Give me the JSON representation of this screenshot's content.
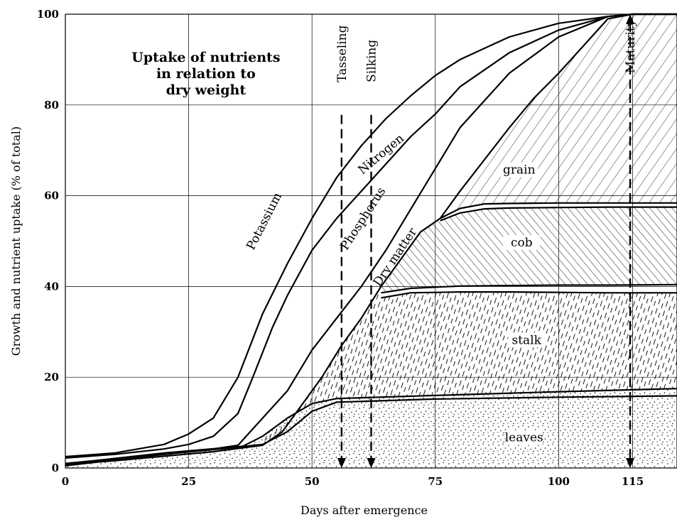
{
  "chart_data": {
    "type": "line",
    "title": [
      "Uptake of nutrients",
      "in relation to",
      "dry weight"
    ],
    "xlabel": "Days after emergence",
    "ylabel": "Growth and nutrient uptake (% of total)",
    "xlim": [
      0,
      124
    ],
    "ylim": [
      0,
      100
    ],
    "xticks": [
      0,
      25,
      50,
      75,
      100,
      115
    ],
    "yticks": [
      0,
      20,
      40,
      60,
      80,
      100
    ],
    "grid": true,
    "series": [
      {
        "name": "Potassium",
        "points": [
          [
            0,
            2.5
          ],
          [
            10,
            3.3
          ],
          [
            20,
            5.2
          ],
          [
            25,
            7.5
          ],
          [
            30,
            11
          ],
          [
            35,
            20
          ],
          [
            40,
            34
          ],
          [
            45,
            45
          ],
          [
            50,
            55
          ],
          [
            55,
            64
          ],
          [
            60,
            71
          ],
          [
            65,
            77
          ],
          [
            70,
            82
          ],
          [
            75,
            86.5
          ],
          [
            80,
            90
          ],
          [
            90,
            95
          ],
          [
            100,
            98
          ],
          [
            110,
            99.5
          ],
          [
            115,
            100
          ],
          [
            124,
            100
          ]
        ]
      },
      {
        "name": "Nitrogen",
        "points": [
          [
            0,
            2.2
          ],
          [
            10,
            3
          ],
          [
            20,
            4.2
          ],
          [
            25,
            5.2
          ],
          [
            30,
            7
          ],
          [
            35,
            12
          ],
          [
            38,
            20
          ],
          [
            42,
            31
          ],
          [
            45,
            38
          ],
          [
            50,
            48
          ],
          [
            55,
            55
          ],
          [
            60,
            61
          ],
          [
            65,
            67
          ],
          [
            70,
            73
          ],
          [
            75,
            78
          ],
          [
            80,
            84
          ],
          [
            90,
            91.5
          ],
          [
            100,
            96.5
          ],
          [
            110,
            99.5
          ],
          [
            115,
            100
          ],
          [
            124,
            100
          ]
        ]
      },
      {
        "name": "Phosphorus",
        "points": [
          [
            0,
            1
          ],
          [
            10,
            2
          ],
          [
            20,
            3
          ],
          [
            30,
            4.2
          ],
          [
            35,
            5
          ],
          [
            40,
            11
          ],
          [
            45,
            17
          ],
          [
            50,
            26
          ],
          [
            55,
            33
          ],
          [
            60,
            40
          ],
          [
            65,
            48
          ],
          [
            70,
            57
          ],
          [
            75,
            66
          ],
          [
            80,
            75
          ],
          [
            90,
            87
          ],
          [
            100,
            95
          ],
          [
            110,
            99.5
          ],
          [
            115,
            100
          ],
          [
            124,
            100
          ]
        ]
      },
      {
        "name": "Dry matter",
        "points": [
          [
            0,
            0.8
          ],
          [
            10,
            1.6
          ],
          [
            20,
            2.6
          ],
          [
            30,
            3.6
          ],
          [
            37,
            4.6
          ],
          [
            40,
            5
          ],
          [
            44,
            8
          ],
          [
            48,
            14
          ],
          [
            52,
            20
          ],
          [
            56,
            27
          ],
          [
            60,
            33
          ],
          [
            64,
            40
          ],
          [
            68,
            46
          ],
          [
            72,
            52
          ],
          [
            76,
            55
          ],
          [
            80,
            61
          ],
          [
            85,
            68
          ],
          [
            90,
            75
          ],
          [
            95,
            81.5
          ],
          [
            100,
            87
          ],
          [
            105,
            93
          ],
          [
            110,
            99
          ],
          [
            115,
            100
          ],
          [
            124,
            100
          ]
        ]
      },
      {
        "name": "leaves_lower",
        "points": [
          [
            0,
            0.5
          ],
          [
            20,
            3
          ],
          [
            35,
            4.6
          ],
          [
            40,
            5.2
          ],
          [
            45,
            8
          ],
          [
            50,
            12.5
          ],
          [
            55,
            14.5
          ],
          [
            75,
            15.2
          ],
          [
            100,
            15.6
          ],
          [
            124,
            15.9
          ]
        ]
      },
      {
        "name": "leaves_upper",
        "points": [
          [
            0,
            0.9
          ],
          [
            20,
            3.3
          ],
          [
            36,
            4.8
          ],
          [
            40,
            7
          ],
          [
            45,
            11
          ],
          [
            50,
            14.2
          ],
          [
            55,
            15.3
          ],
          [
            75,
            16
          ],
          [
            100,
            16.8
          ],
          [
            124,
            17.5
          ]
        ]
      },
      {
        "name": "stalk_lower",
        "points": [
          [
            64,
            37.5
          ],
          [
            70,
            38.6
          ],
          [
            80,
            38.8
          ],
          [
            90,
            38.8
          ],
          [
            100,
            38.7
          ],
          [
            110,
            38.6
          ],
          [
            124,
            38.6
          ]
        ]
      },
      {
        "name": "stalk_upper",
        "points": [
          [
            64,
            38.6
          ],
          [
            70,
            39.6
          ],
          [
            80,
            40.1
          ],
          [
            90,
            40.2
          ],
          [
            100,
            40.3
          ],
          [
            110,
            40.3
          ],
          [
            124,
            40.4
          ]
        ]
      },
      {
        "name": "cob_lower",
        "points": [
          [
            76,
            54.5
          ],
          [
            80,
            56.2
          ],
          [
            85,
            57.1
          ],
          [
            90,
            57.3
          ],
          [
            100,
            57.4
          ],
          [
            110,
            57.5
          ],
          [
            124,
            57.5
          ]
        ]
      },
      {
        "name": "cob_upper",
        "points": [
          [
            76,
            55
          ],
          [
            80,
            57.2
          ],
          [
            85,
            58.2
          ],
          [
            90,
            58.3
          ],
          [
            100,
            58.4
          ],
          [
            110,
            58.4
          ],
          [
            124,
            58.4
          ]
        ]
      }
    ],
    "curve_labels": [
      {
        "text": "Potassium",
        "x": 41,
        "y": 54,
        "rotate": -63
      },
      {
        "text": "Nitrogen",
        "x": 64.5,
        "y": 68.5,
        "rotate": -40
      },
      {
        "text": "Phosphorus",
        "x": 61,
        "y": 54.5,
        "rotate": -57
      },
      {
        "text": "Dry matter",
        "x": 67.5,
        "y": 46,
        "rotate": -56
      }
    ],
    "regions": [
      {
        "name": "grain",
        "x": 92,
        "y": 65
      },
      {
        "name": "cob",
        "x": 92.5,
        "y": 49
      },
      {
        "name": "stalk",
        "x": 93.5,
        "y": 27.5
      },
      {
        "name": "leaves",
        "x": 93,
        "y": 6
      }
    ],
    "stages": [
      {
        "name": "Tasseling",
        "day": 56
      },
      {
        "name": "Silking",
        "day": 62
      },
      {
        "name": "Maturity",
        "day": 114.5
      }
    ]
  }
}
